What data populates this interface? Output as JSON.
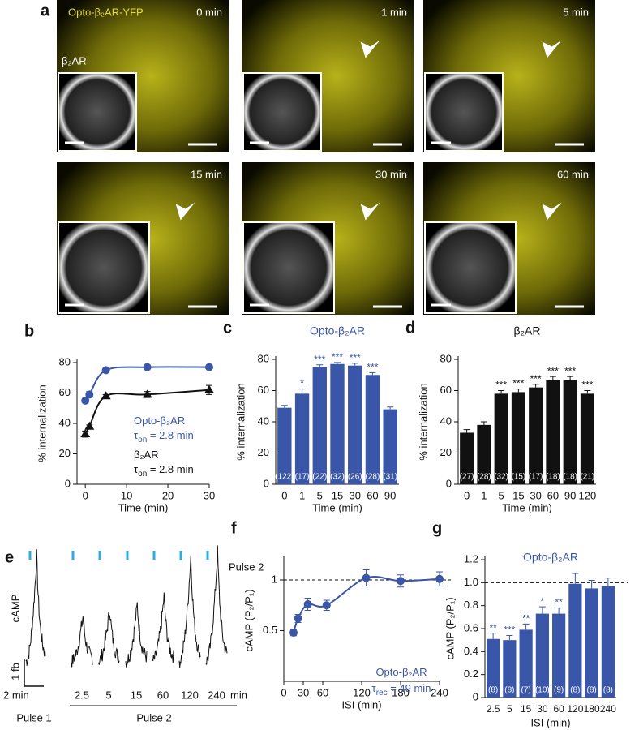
{
  "panel_a": {
    "letter": "a",
    "label": "Opto-β₂AR-YFP",
    "inset_label": "β₂AR",
    "times": [
      "0 min",
      "1 min",
      "5 min",
      "15 min",
      "30 min",
      "60 min"
    ]
  },
  "panel_e": {
    "letter": "e",
    "ylabel": "cAMP",
    "scale_y": "1 fb",
    "scale_x": "2 min",
    "pulse1": "Pulse 1",
    "pulse2": "Pulse 2",
    "pulse2_side": "Pulse 2",
    "isi_labels": [
      "2.5",
      "5",
      "15",
      "60",
      "120",
      "240"
    ],
    "unit": "min"
  },
  "chart_data": [
    {
      "type": "line",
      "panel": "b",
      "xlabel": "Time (min)",
      "ylabel": "% internalization",
      "xlim": [
        -2,
        30
      ],
      "xticks": [
        0,
        10,
        20,
        30
      ],
      "ylim": [
        0,
        80
      ],
      "yticks": [
        0,
        20,
        40,
        60,
        80
      ],
      "series": [
        {
          "name": "Opto-β₂AR",
          "color": "#3a56a8",
          "marker": "circle",
          "x": [
            0,
            1,
            5,
            15,
            30
          ],
          "values": [
            55,
            59,
            75,
            77,
            77
          ],
          "errors": [
            1,
            2,
            1,
            1,
            1
          ]
        },
        {
          "name": "β₂AR",
          "color": "#111111",
          "marker": "triangle",
          "x": [
            0,
            1,
            5,
            15,
            30
          ],
          "values": [
            33,
            38,
            58,
            59,
            62
          ],
          "errors": [
            2,
            1,
            1,
            2,
            3
          ]
        }
      ],
      "annotations": [
        {
          "text": "Opto-β₂AR",
          "color": "#3a56a8"
        },
        {
          "symbol": "τ",
          "sub": "on",
          "rest": " = 2.8 min",
          "color": "#3a56a8"
        },
        {
          "text": "β₂AR",
          "color": "#111111"
        },
        {
          "symbol": "τ",
          "sub": "on",
          "rest": " = 2.8 min",
          "color": "#111111"
        }
      ]
    },
    {
      "type": "bar",
      "panel": "c",
      "title": "Opto-β₂AR",
      "xlabel": "Time (min)",
      "ylabel": "% internalization",
      "categories": [
        "0",
        "1",
        "5",
        "15",
        "30",
        "60",
        "90"
      ],
      "values": [
        49,
        58,
        75,
        77,
        76,
        70,
        48
      ],
      "errors": [
        1.5,
        3,
        1.5,
        1,
        1.5,
        1.5,
        1.5
      ],
      "stars": [
        null,
        "*",
        "***",
        "***",
        "***",
        "***",
        null
      ],
      "n_labels": [
        "(122)",
        "(17)",
        "(22)",
        "(32)",
        "(26)",
        "(28)",
        "(31)"
      ],
      "color": "#3a56a8",
      "ylim": [
        0,
        80
      ],
      "yticks": [
        0,
        20,
        40,
        60,
        80
      ]
    },
    {
      "type": "bar",
      "panel": "d",
      "title": "β₂AR",
      "xlabel": "Time (min)",
      "ylabel": "% internalization",
      "categories": [
        "0",
        "1",
        "5",
        "15",
        "30",
        "60",
        "90",
        "120"
      ],
      "values": [
        33,
        38,
        58,
        59,
        62,
        67,
        67,
        58
      ],
      "errors": [
        2,
        2,
        2,
        2,
        2,
        2,
        2,
        2
      ],
      "stars": [
        null,
        null,
        "***",
        "***",
        "***",
        "***",
        "***",
        "***"
      ],
      "n_labels": [
        "(27)",
        "(28)",
        "(32)",
        "(15)",
        "(17)",
        "(18)",
        "(18)",
        "(21)"
      ],
      "color": "#111111",
      "ylim": [
        0,
        80
      ],
      "yticks": [
        0,
        20,
        40,
        60,
        80
      ]
    },
    {
      "type": "scatter",
      "panel": "f",
      "xlabel": "ISI (min)",
      "ylabel": "cAMP (P₂/P₁)",
      "xlim": [
        0,
        240
      ],
      "xticks": [
        0,
        30,
        60,
        120,
        180,
        240
      ],
      "ylim": [
        0,
        1.2
      ],
      "yticks": [
        0.5,
        1
      ],
      "refline": 1,
      "series": [
        {
          "name": "Opto-β₂AR",
          "color": "#3a56a8",
          "marker": "circle",
          "x": [
            15,
            22,
            37,
            66,
            127,
            180,
            240
          ],
          "values": [
            0.48,
            0.62,
            0.76,
            0.75,
            1.02,
            0.99,
            1.01
          ],
          "errors": [
            0.03,
            0.04,
            0.06,
            0.05,
            0.08,
            0.06,
            0.07
          ]
        }
      ],
      "annotations": [
        {
          "text": "Opto-β₂AR",
          "color": "#3a56a8"
        },
        {
          "symbol": "τ",
          "sub": "rec",
          "rest": " = 49 min",
          "color": "#3a56a8"
        }
      ]
    },
    {
      "type": "bar",
      "panel": "g",
      "title": "Opto-β₂AR",
      "xlabel": "ISI (min)",
      "ylabel": "cAMP (P₂/P₁)",
      "categories": [
        "2.5",
        "5",
        "15",
        "30",
        "60",
        "120",
        "180",
        "240"
      ],
      "values": [
        0.51,
        0.5,
        0.59,
        0.73,
        0.73,
        0.99,
        0.95,
        0.97
      ],
      "errors": [
        0.05,
        0.04,
        0.05,
        0.06,
        0.05,
        0.09,
        0.07,
        0.07
      ],
      "stars": [
        "**",
        "***",
        "**",
        "*",
        "**",
        null,
        null,
        null
      ],
      "n_labels": [
        "(8)",
        "(8)",
        "(7)",
        "(10)",
        "(9)",
        "(8)",
        "(8)",
        "(8)"
      ],
      "color": "#3a56a8",
      "refline": 1,
      "ylim": [
        0,
        1.2
      ],
      "yticks": [
        0,
        0.2,
        0.4,
        0.6,
        0.8,
        {
          "value": 1,
          "label": "1.0"
        },
        1.2
      ]
    }
  ]
}
